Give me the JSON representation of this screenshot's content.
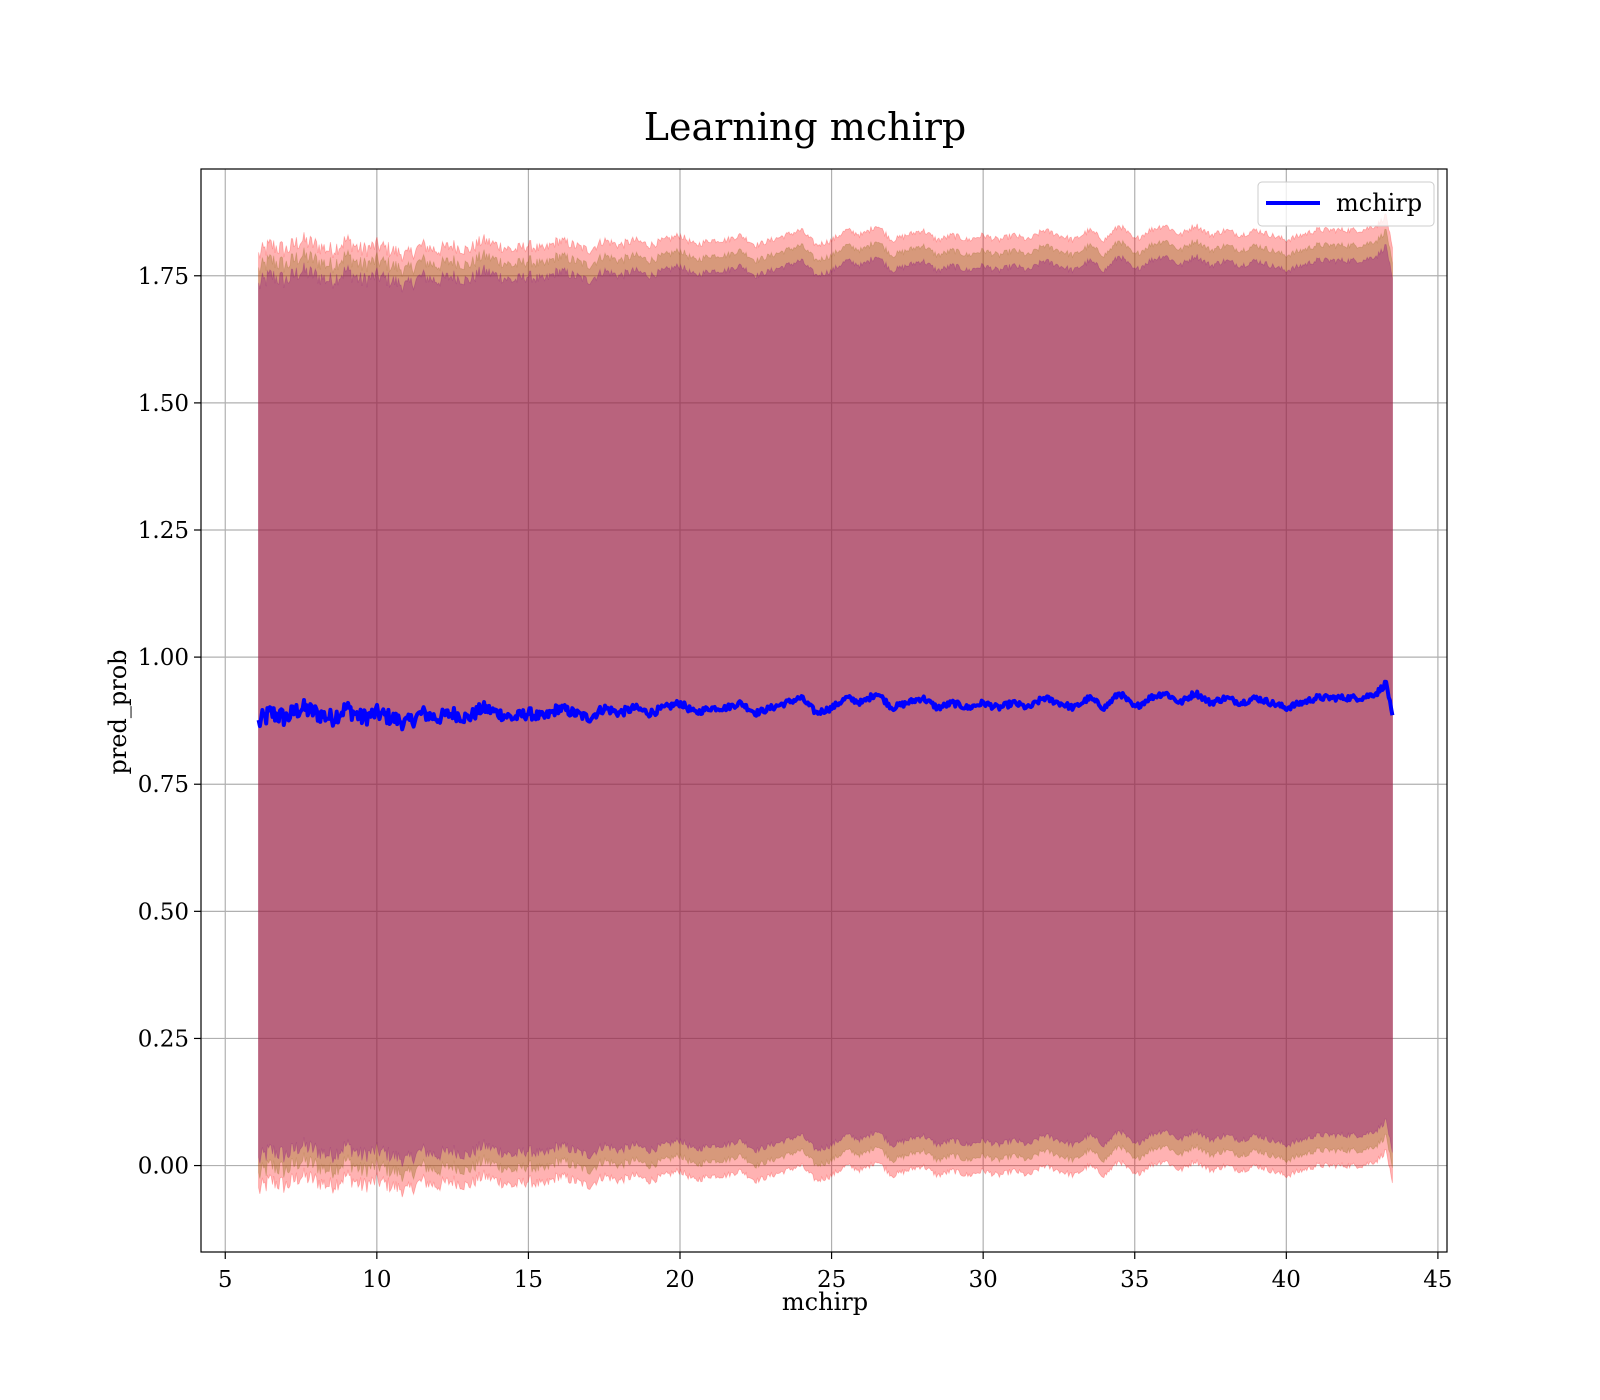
{
  "chart_data": {
    "type": "line",
    "title": "Learning mchirp",
    "xlabel": "mchirp",
    "ylabel": "pred_prob",
    "xlim": [
      4.2,
      45.3
    ],
    "ylim": [
      -0.17,
      1.96
    ],
    "xticks": [
      5,
      10,
      15,
      20,
      25,
      30,
      35,
      40,
      45
    ],
    "xtick_labels": [
      "5",
      "10",
      "15",
      "20",
      "25",
      "30",
      "35",
      "40",
      "45"
    ],
    "yticks": [
      0.0,
      0.25,
      0.5,
      0.75,
      1.0,
      1.25,
      1.5,
      1.75
    ],
    "ytick_labels": [
      "0.00",
      "0.25",
      "0.50",
      "0.75",
      "1.00",
      "1.25",
      "1.50",
      "1.75"
    ],
    "grid": true,
    "legend": {
      "position": "top-right",
      "entries": [
        "mchirp"
      ]
    },
    "series": [
      {
        "name": "mchirp",
        "color": "#0000ff",
        "x": [
          6.1,
          6.5,
          7,
          7.5,
          8,
          8.5,
          9,
          9.5,
          10,
          10.5,
          11,
          11.5,
          12,
          12.5,
          13,
          13.5,
          14,
          14.5,
          15,
          15.5,
          16,
          16.5,
          17,
          17.5,
          18,
          18.5,
          19,
          19.5,
          20,
          20.5,
          21,
          21.5,
          22,
          22.5,
          23,
          23.5,
          24,
          24.5,
          25,
          25.5,
          26,
          26.5,
          27,
          27.5,
          28,
          28.5,
          29,
          29.5,
          30,
          30.5,
          31,
          31.5,
          32,
          32.5,
          33,
          33.5,
          34,
          34.5,
          35,
          35.5,
          36,
          36.5,
          37,
          37.5,
          38,
          38.5,
          39,
          39.5,
          40,
          40.5,
          41,
          41.5,
          42,
          42.5,
          43,
          43.3,
          43.5
        ],
        "y": [
          0.87,
          0.89,
          0.88,
          0.9,
          0.89,
          0.88,
          0.9,
          0.88,
          0.89,
          0.88,
          0.87,
          0.89,
          0.88,
          0.89,
          0.88,
          0.9,
          0.89,
          0.88,
          0.89,
          0.88,
          0.9,
          0.89,
          0.88,
          0.9,
          0.89,
          0.9,
          0.89,
          0.9,
          0.91,
          0.89,
          0.9,
          0.9,
          0.91,
          0.89,
          0.9,
          0.91,
          0.92,
          0.89,
          0.9,
          0.92,
          0.91,
          0.93,
          0.9,
          0.91,
          0.92,
          0.9,
          0.91,
          0.9,
          0.91,
          0.9,
          0.91,
          0.9,
          0.92,
          0.91,
          0.9,
          0.92,
          0.9,
          0.93,
          0.9,
          0.92,
          0.93,
          0.91,
          0.93,
          0.91,
          0.92,
          0.91,
          0.92,
          0.91,
          0.9,
          0.91,
          0.92,
          0.92,
          0.92,
          0.92,
          0.93,
          0.95,
          0.88
        ]
      }
    ],
    "bands": [
      {
        "name": "",
        "color": "#ff0000",
        "opacity": 0.3,
        "offset": 0.92
      },
      {
        "name": "",
        "color": "#8b6914",
        "opacity": 0.35,
        "offset": 0.89
      },
      {
        "name": "",
        "color": "#800080",
        "opacity": 0.35,
        "offset": 0.86
      }
    ],
    "noise": {
      "x_until": 21,
      "amplitude_start": 0.02,
      "amplitude_end": 0.006
    }
  }
}
